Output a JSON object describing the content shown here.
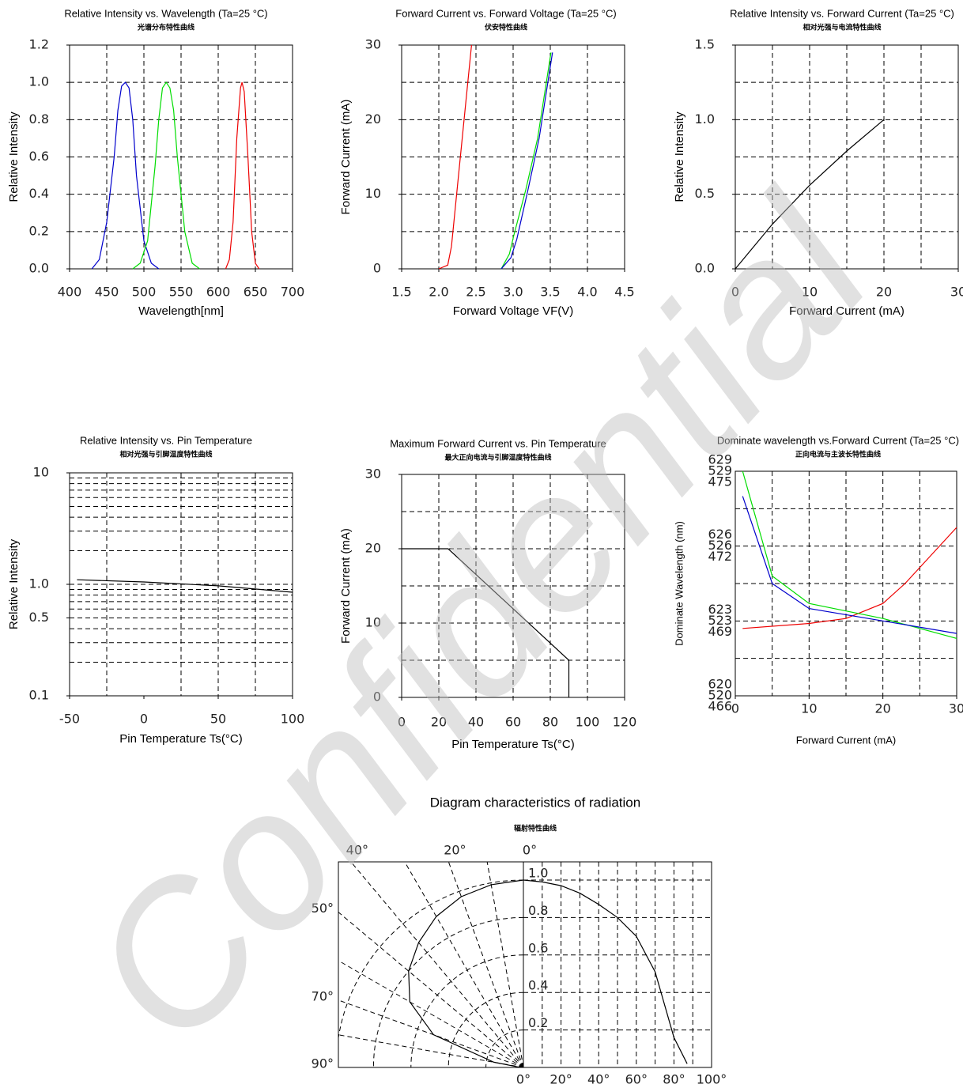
{
  "watermark": "Confidential",
  "chart_data": [
    {
      "type": "line",
      "title": "Relative Intensity vs. Wavelength (Ta=25 °C)",
      "subtitle": "光谱分布特性曲线",
      "x_label": "Wavelength[nm]",
      "y_label": "Relative Intensity",
      "xlim": [
        400,
        700
      ],
      "xticks": [
        400,
        450,
        500,
        550,
        600,
        650,
        700
      ],
      "xgrid": [
        450,
        500,
        550,
        600,
        650
      ],
      "ylim": [
        0,
        1.2
      ],
      "yticks": [
        {
          "value": 0,
          "label": "0.0"
        },
        0.2,
        0.4,
        0.6,
        0.8,
        {
          "value": 1,
          "label": "1.0"
        },
        1.2
      ],
      "ygrid": [
        0.2,
        0.4,
        0.6,
        0.8,
        1.0
      ],
      "series": [
        {
          "color": "#0000cc",
          "x": [
            430,
            440,
            450,
            460,
            465,
            470,
            475,
            480,
            485,
            490,
            500,
            510,
            520
          ],
          "values": [
            0,
            0.05,
            0.25,
            0.6,
            0.85,
            0.98,
            1.0,
            0.97,
            0.8,
            0.5,
            0.15,
            0.03,
            0
          ]
        },
        {
          "color": "#00dd00",
          "x": [
            485,
            495,
            505,
            515,
            520,
            525,
            530,
            535,
            540,
            545,
            555,
            565,
            575
          ],
          "values": [
            0,
            0.03,
            0.15,
            0.55,
            0.8,
            0.97,
            1.0,
            0.97,
            0.85,
            0.6,
            0.2,
            0.03,
            0
          ]
        },
        {
          "color": "#ee0000",
          "x": [
            610,
            615,
            620,
            625,
            630,
            632,
            635,
            640,
            645,
            650,
            655
          ],
          "values": [
            0,
            0.05,
            0.25,
            0.7,
            0.97,
            1.0,
            0.95,
            0.6,
            0.2,
            0.03,
            0
          ]
        }
      ]
    },
    {
      "type": "line",
      "title": "Forward Current vs. Forward Voltage (Ta=25 °C)",
      "subtitle": "伏安特性曲线",
      "x_label": "Forward Voltage  VF(V)",
      "y_label": "Forward Current (mA)",
      "xlim": [
        1.5,
        4.5
      ],
      "xticks": [
        1.5,
        {
          "value": 2,
          "label": "2.0"
        },
        2.5,
        {
          "value": 3,
          "label": "3.0"
        },
        3.5,
        {
          "value": 4,
          "label": "4.0"
        },
        4.5
      ],
      "xgrid": [
        2,
        2.5,
        3,
        3.5,
        4
      ],
      "ylim": [
        0,
        30
      ],
      "yticks": [
        0,
        10,
        20,
        30
      ],
      "ygrid": [
        5,
        10,
        15,
        20,
        25
      ],
      "series": [
        {
          "color": "#ee0000",
          "x": [
            2.0,
            2.12,
            2.17,
            2.25,
            2.35,
            2.44
          ],
          "values": [
            0,
            0.5,
            3,
            11,
            21,
            30
          ]
        },
        {
          "color": "#00dd00",
          "x": [
            2.84,
            2.95,
            3.01,
            3.17,
            3.33,
            3.51
          ],
          "values": [
            0,
            2,
            4.5,
            10.6,
            17.5,
            29
          ]
        },
        {
          "color": "#0000cc",
          "x": [
            2.84,
            2.97,
            3.05,
            3.2,
            3.35,
            3.53
          ],
          "values": [
            0,
            1.5,
            4,
            10.6,
            17.5,
            29
          ]
        }
      ]
    },
    {
      "type": "line",
      "title": "Relative Intensity vs. Forward Current (Ta=25 °C)",
      "subtitle": "相对光强与电流特性曲线",
      "x_label": "Forward Current (mA)",
      "y_label": "Relative Intensity",
      "xlim": [
        0,
        30
      ],
      "xticks": [
        0,
        10,
        20,
        30
      ],
      "xgrid": [
        5,
        10,
        15,
        20,
        25
      ],
      "ylim": [
        0,
        1.5
      ],
      "yticks": [
        {
          "value": 0,
          "label": "0.0"
        },
        0.5,
        {
          "value": 1,
          "label": "1.0"
        },
        1.5
      ],
      "ygrid": [
        0.25,
        0.5,
        0.75,
        1.0,
        1.25
      ],
      "series": [
        {
          "color": "#000000",
          "x": [
            0,
            5,
            10,
            15,
            20
          ],
          "values": [
            0,
            0.3,
            0.56,
            0.79,
            1.0
          ]
        }
      ]
    },
    {
      "type": "line",
      "title": "Relative Intensity vs. Pin Temperature",
      "subtitle": "相对光强与引脚温度特性曲线",
      "x_label": "Pin Temperature Ts(°C)",
      "y_label": "Relative Intensity",
      "xlim": [
        -50,
        100
      ],
      "xticks": [
        -50,
        0,
        50,
        100
      ],
      "xgrid": [
        -25,
        25,
        50,
        75
      ],
      "log_y": true,
      "ylim": [
        0.1,
        10
      ],
      "yticks": [
        0.1,
        0.5,
        {
          "value": 1,
          "label": "1.0"
        },
        10
      ],
      "ygrid": [
        0.2,
        0.3,
        0.4,
        0.5,
        0.6,
        0.7,
        0.8,
        0.9,
        1,
        2,
        3,
        4,
        5,
        6,
        7,
        8,
        9
      ],
      "series": [
        {
          "color": "#000000",
          "x": [
            -45,
            0,
            50,
            100
          ],
          "values": [
            1.1,
            1.05,
            0.97,
            0.85
          ]
        }
      ]
    },
    {
      "type": "line",
      "title": "Maximum Forward Current vs. Pin Temperature",
      "subtitle": "最大正向电流与引脚温度特性曲线",
      "x_label": "Pin Temperature Ts(°C)",
      "y_label": "Forward Current (mA)",
      "xlim": [
        0,
        120
      ],
      "xticks": [
        0,
        20,
        40,
        60,
        80,
        100,
        120
      ],
      "xgrid": [
        20,
        40,
        60,
        80,
        100
      ],
      "ylim": [
        0,
        30
      ],
      "yticks": [
        0,
        10,
        20,
        30
      ],
      "ygrid": [
        5,
        10,
        15,
        20,
        25
      ],
      "series": [
        {
          "color": "#000000",
          "x": [
            0,
            25,
            90,
            90
          ],
          "values": [
            20,
            20,
            5,
            0
          ]
        }
      ]
    },
    {
      "type": "line",
      "title": "Dominate wavelength vs.Forward Current (Ta=25 °C)",
      "subtitle": "正向电流与主波长特性曲线",
      "x_label": "Forward  Current  (mA)",
      "y_label": "Dominate Wavelength (nm)",
      "xlim": [
        0,
        30
      ],
      "xticks": [
        0,
        10,
        20,
        30
      ],
      "xgrid": [
        5,
        10,
        15,
        20,
        25
      ],
      "ygrid": [
        621.5,
        623,
        624.5,
        626,
        627.5
      ],
      "series": [
        {
          "color": "#ee0000",
          "ylim": [
            620,
            629
          ],
          "yticks": [
            629,
            626,
            623,
            620
          ],
          "x": [
            1,
            10,
            15,
            20,
            23,
            30
          ],
          "values": [
            622.7,
            622.9,
            623.1,
            623.7,
            624.5,
            626.75
          ]
        },
        {
          "color": "#00dd00",
          "ylim": [
            520,
            529
          ],
          "yticks": [
            529,
            526,
            523,
            520
          ],
          "x": [
            1,
            5,
            10,
            20,
            30
          ],
          "values": [
            529,
            524.8,
            523.7,
            523.1,
            522.3
          ]
        },
        {
          "color": "#0000cc",
          "ylim": [
            466,
            475
          ],
          "yticks": [
            475,
            472,
            469,
            466
          ],
          "x": [
            1,
            5,
            10,
            20,
            30
          ],
          "values": [
            474,
            470.5,
            469.5,
            469,
            468.5
          ]
        }
      ]
    },
    {
      "type": "polar",
      "title": "Diagram characteristics of radiation",
      "subtitle": "辐射特性曲线",
      "angle_labels": [
        {
          "value": 40,
          "label": "40°"
        },
        {
          "value": 20,
          "label": "20°"
        },
        {
          "value": 0,
          "label": "0°"
        },
        {
          "value": 50,
          "label": "50°"
        },
        {
          "value": 70,
          "label": "70°"
        },
        {
          "value": 90,
          "label": "90°"
        }
      ],
      "agrid": [
        10,
        20,
        30,
        40,
        50,
        60,
        70,
        80,
        90
      ],
      "rlim": [
        0,
        1
      ],
      "rticks": [
        {
          "value": 1,
          "label": "1.0"
        },
        0.8,
        0.6,
        0.4,
        0.2
      ],
      "xlim": [
        0,
        100
      ],
      "xticks": [
        {
          "value": 0,
          "label": "0°"
        },
        {
          "value": 20,
          "label": "20°"
        },
        {
          "value": 40,
          "label": "40°"
        },
        {
          "value": 60,
          "label": "60°"
        },
        {
          "value": 80,
          "label": "80°"
        },
        {
          "value": 100,
          "label": "100°"
        }
      ],
      "xgrid": [
        10,
        20,
        30,
        40,
        50,
        60,
        70,
        80,
        90
      ],
      "series": [
        {
          "color": "#000000",
          "x": [
            0,
            10,
            20,
            30,
            40,
            50,
            60,
            70,
            80,
            87
          ],
          "values": [
            1.0,
            0.99,
            0.97,
            0.93,
            0.87,
            0.8,
            0.7,
            0.51,
            0.16,
            0.02
          ]
        }
      ]
    }
  ]
}
